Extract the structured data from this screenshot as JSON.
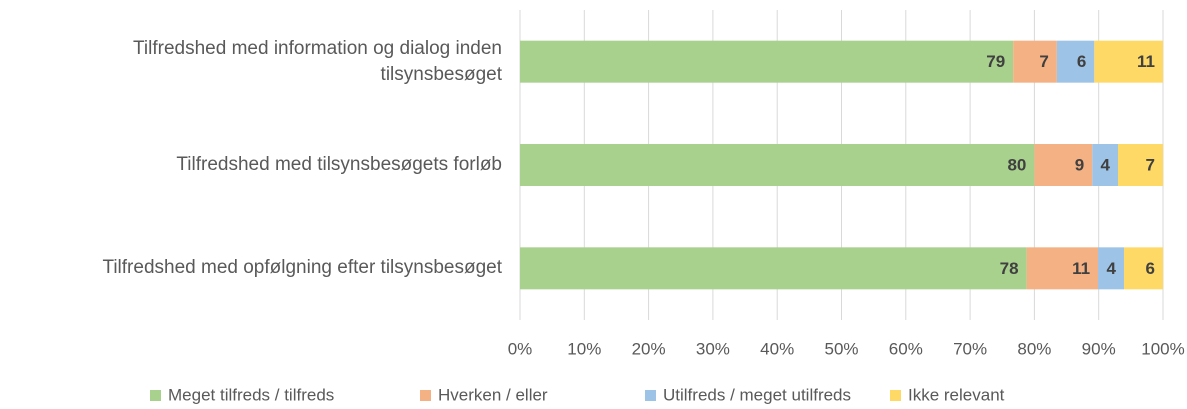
{
  "chart_data": {
    "type": "bar",
    "orientation": "horizontal",
    "stacked": "percent",
    "categories": [
      "Tilfredshed med information og dialog inden tilsynsbesøget",
      "Tilfredshed med tilsynsbesøgets forløb",
      "Tilfredshed med opfølgning efter tilsynsbesøget"
    ],
    "series": [
      {
        "name": "Meget tilfreds / tilfreds",
        "color": "#a9d18e",
        "values": [
          79,
          80,
          78
        ]
      },
      {
        "name": "Hverken / eller",
        "color": "#f4b183",
        "values": [
          7,
          9,
          11
        ]
      },
      {
        "name": "Utilfreds / meget utilfreds",
        "color": "#9dc3e6",
        "values": [
          6,
          4,
          4
        ]
      },
      {
        "name": "Ikke relevant",
        "color": "#ffd966",
        "values": [
          11,
          7,
          6
        ]
      }
    ],
    "xlim": [
      0,
      100
    ],
    "xticks": [
      {
        "value": 0,
        "label": "0%"
      },
      {
        "value": 10,
        "label": "10%"
      },
      {
        "value": 20,
        "label": "20%"
      },
      {
        "value": 30,
        "label": "30%"
      },
      {
        "value": 40,
        "label": "40%"
      },
      {
        "value": 50,
        "label": "50%"
      },
      {
        "value": 60,
        "label": "60%"
      },
      {
        "value": 70,
        "label": "70%"
      },
      {
        "value": 80,
        "label": "80%"
      },
      {
        "value": 90,
        "label": "90%"
      },
      {
        "value": 100,
        "label": "100%"
      }
    ],
    "grid": true,
    "legend": "bottom"
  }
}
